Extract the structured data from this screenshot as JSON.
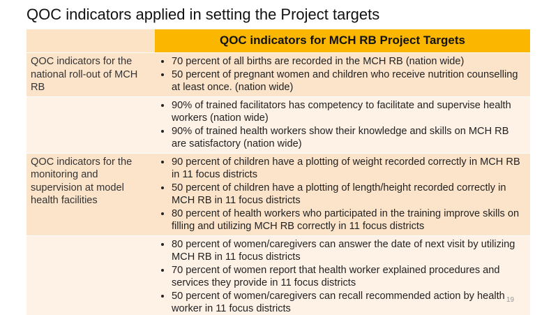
{
  "title": "QOC indicators applied in setting the Project targets",
  "page_number": "19",
  "table": {
    "header": "QOC indicators for MCH RB Project Targets",
    "rows": [
      {
        "label": "QOC indicators for the national roll-out of MCH RB",
        "items": [
          "70 percent of all births are recorded in the MCH RB (nation wide)",
          "50 percent of pregnant women and children who receive nutrition counselling at least once. (nation wide)"
        ]
      },
      {
        "items": [
          "90% of trained facilitators has competency to facilitate and supervise health workers (nation wide)",
          "90% of trained health workers show their knowledge and skills on MCH RB are satisfactory (nation wide)"
        ]
      },
      {
        "label": "QOC indicators for the monitoring and supervision at model health facilities",
        "items": [
          "90 percent of children have a plotting of weight recorded correctly in MCH RB in 11 focus districts",
          "50 percent of children have a plotting of length/height recorded correctly  in MCH RB in 11 focus districts",
          "80 percent of health workers who participated in the training improve skills on filling and utilizing MCH RB correctly  in 11 focus districts"
        ]
      },
      {
        "items": [
          "80 percent of women/caregivers can answer the date of next visit by utilizing MCH RB in  11 focus districts",
          "70 percent of women report that health worker explained procedures and services they provide in 11 focus districts",
          "50 percent of women/caregivers  can recall recommended action by health worker in 11 focus districts"
        ]
      }
    ]
  }
}
